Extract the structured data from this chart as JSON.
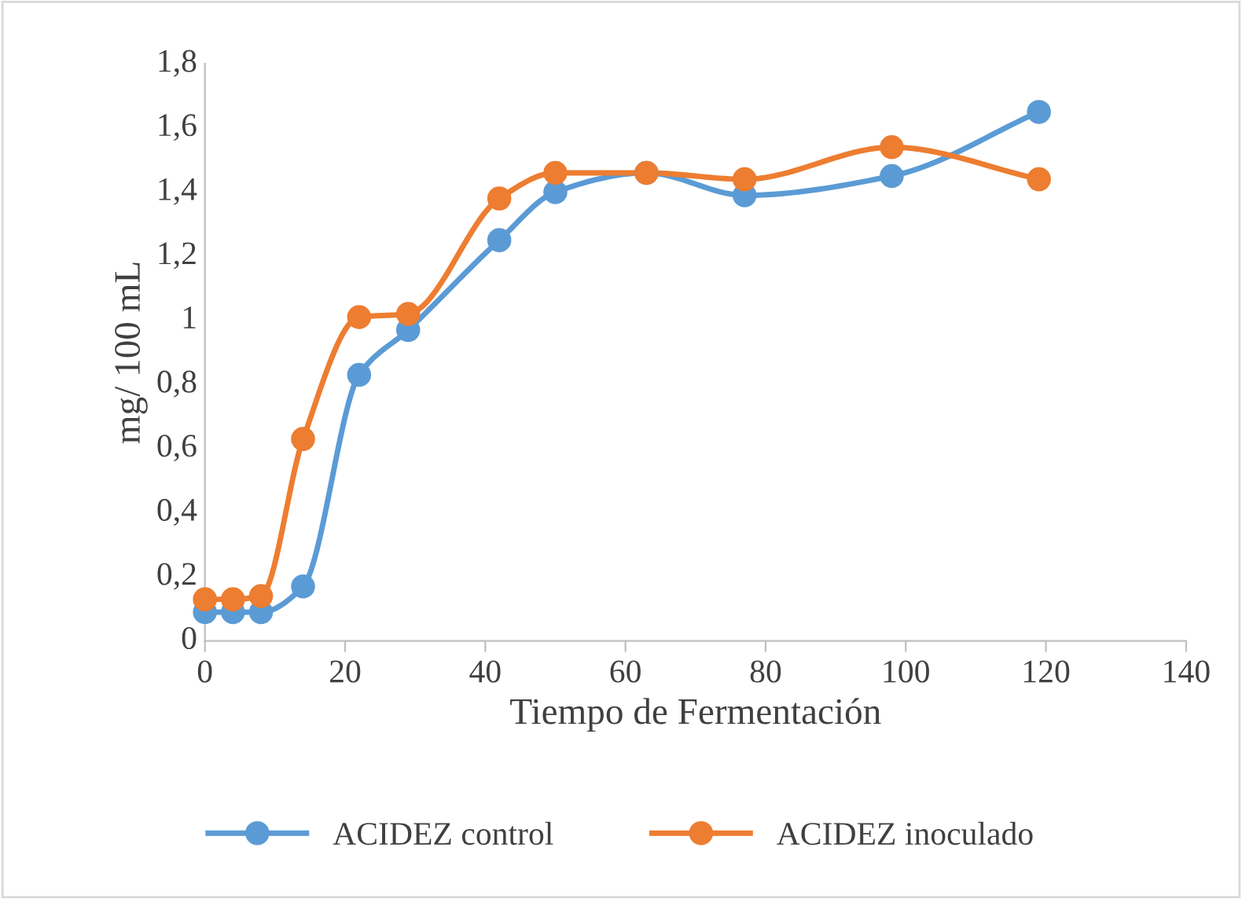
{
  "chart_data": {
    "type": "line",
    "xlabel": "Tiempo de Fermentación",
    "ylabel": "mg/ 100 mL",
    "xlim": [
      0,
      140
    ],
    "xticks": [
      0,
      20,
      40,
      60,
      80,
      100,
      120,
      140
    ],
    "ylim": [
      0,
      1.8
    ],
    "yticks": [
      0,
      {
        "value": 0.2,
        "label": "0,2"
      },
      {
        "value": 0.4,
        "label": "0,4"
      },
      {
        "value": 0.6,
        "label": "0,6"
      },
      {
        "value": 0.8,
        "label": "0,8"
      },
      1,
      {
        "value": 1.2,
        "label": "1,2"
      },
      {
        "value": 1.4,
        "label": "1,4"
      },
      {
        "value": 1.6,
        "label": "1,6"
      },
      {
        "value": 1.8,
        "label": "1,8"
      }
    ],
    "x": [
      0,
      4,
      8,
      14,
      22,
      29,
      42,
      50,
      63,
      77,
      98,
      119
    ],
    "series": [
      {
        "name": "ACIDEZ control",
        "color": "#5b9bd5",
        "values": [
          0.09,
          0.09,
          0.09,
          0.17,
          0.83,
          0.97,
          1.25,
          1.4,
          1.46,
          1.39,
          1.45,
          1.65
        ]
      },
      {
        "name": "ACIDEZ inoculado",
        "color": "#ed7d31",
        "values": [
          0.13,
          0.13,
          0.14,
          0.63,
          1.01,
          1.02,
          1.38,
          1.46,
          1.46,
          1.44,
          1.54,
          1.44
        ]
      }
    ],
    "marker": "circle",
    "line_style": "solid",
    "grid": false,
    "legend": "bottom"
  }
}
